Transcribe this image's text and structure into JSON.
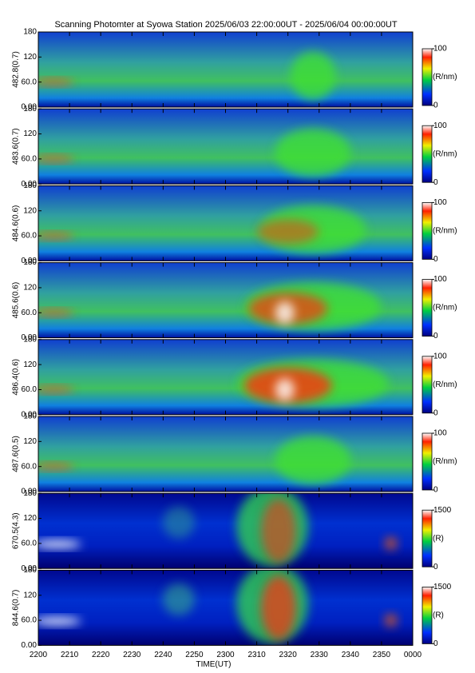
{
  "chart_data": [
    {
      "type": "heatmap",
      "title": "Scanning Photomter at Syowa Station 2025/06/03 22:00:00UT - 2025/06/04 00:00:00UT",
      "ylabel": "482.8(0.7)",
      "ylim": [
        0,
        180
      ],
      "yticks": [
        {
          "value": 0,
          "label": "0.00"
        },
        {
          "value": 60,
          "label": "60.0"
        },
        120,
        180
      ],
      "clim": [
        0,
        100
      ],
      "cticks": [
        0,
        100
      ],
      "clabel": "(R/nm)"
    },
    {
      "type": "heatmap",
      "ylabel": "483.6(0.7)",
      "ylim": [
        0,
        180
      ],
      "yticks": [
        {
          "value": 0,
          "label": "0.00"
        },
        {
          "value": 60,
          "label": "60.0"
        },
        120,
        180
      ],
      "clim": [
        0,
        100
      ],
      "cticks": [
        0,
        100
      ],
      "clabel": "(R/nm)"
    },
    {
      "type": "heatmap",
      "ylabel": "484.6(0.6)",
      "ylim": [
        0,
        180
      ],
      "yticks": [
        {
          "value": 0,
          "label": "0.00"
        },
        {
          "value": 60,
          "label": "60.0"
        },
        120,
        180
      ],
      "clim": [
        0,
        100
      ],
      "cticks": [
        0,
        100
      ],
      "clabel": "(R/nm)"
    },
    {
      "type": "heatmap",
      "ylabel": "485.6(0.6)",
      "ylim": [
        0,
        180
      ],
      "yticks": [
        {
          "value": 0,
          "label": "0.00"
        },
        {
          "value": 60,
          "label": "60.0"
        },
        120,
        180
      ],
      "clim": [
        0,
        100
      ],
      "cticks": [
        0,
        100
      ],
      "clabel": "(R/nm)"
    },
    {
      "type": "heatmap",
      "ylabel": "486.4(0.6)",
      "ylim": [
        0,
        180
      ],
      "yticks": [
        {
          "value": 0,
          "label": "0.00"
        },
        {
          "value": 60,
          "label": "60.0"
        },
        120,
        180
      ],
      "clim": [
        0,
        100
      ],
      "cticks": [
        0,
        100
      ],
      "clabel": "(R/nm)"
    },
    {
      "type": "heatmap",
      "ylabel": "487.6(0.5)",
      "ylim": [
        0,
        180
      ],
      "yticks": [
        {
          "value": 0,
          "label": "0.00"
        },
        {
          "value": 60,
          "label": "60.0"
        },
        120,
        180
      ],
      "clim": [
        0,
        100
      ],
      "cticks": [
        0,
        100
      ],
      "clabel": "(R/nm)"
    },
    {
      "type": "heatmap",
      "ylabel": "670.5(4.3)",
      "ylim": [
        0,
        180
      ],
      "yticks": [
        {
          "value": 0,
          "label": "0.00"
        },
        {
          "value": 60,
          "label": "60.0"
        },
        120,
        180
      ],
      "clim": [
        0,
        1500
      ],
      "cticks": [
        0,
        1500
      ],
      "clabel": "(R)"
    },
    {
      "type": "heatmap",
      "ylabel": "844.6(0.7)",
      "ylim": [
        0,
        180
      ],
      "yticks": [
        {
          "value": 0,
          "label": "0.00"
        },
        {
          "value": 60,
          "label": "60.0"
        },
        120,
        180
      ],
      "clim": [
        0,
        1500
      ],
      "cticks": [
        0,
        1500
      ],
      "clabel": "(R)",
      "xlabel": "TIME(UT)",
      "xlim": [
        0,
        120
      ],
      "xticks": [
        {
          "value": 0,
          "label": "2200"
        },
        {
          "value": 10,
          "label": "2210"
        },
        {
          "value": 20,
          "label": "2220"
        },
        {
          "value": 30,
          "label": "2230"
        },
        {
          "value": 40,
          "label": "2240"
        },
        {
          "value": 50,
          "label": "2250"
        },
        {
          "value": 60,
          "label": "2300"
        },
        {
          "value": 70,
          "label": "2310"
        },
        {
          "value": 80,
          "label": "2320"
        },
        {
          "value": 90,
          "label": "2330"
        },
        {
          "value": 100,
          "label": "2340"
        },
        {
          "value": 110,
          "label": "2350"
        },
        {
          "value": 120,
          "label": "0000"
        }
      ]
    }
  ]
}
